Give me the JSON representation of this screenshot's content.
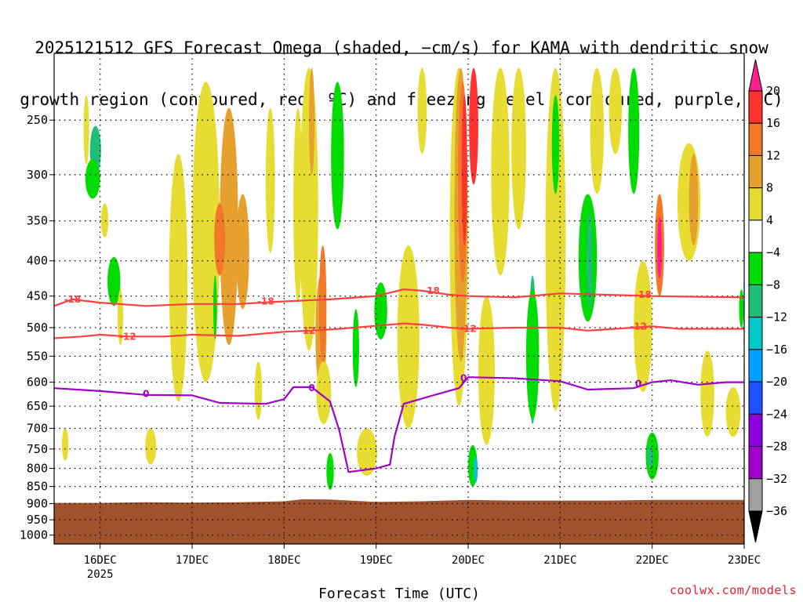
{
  "title": {
    "line1": "2025121512 GFS Forecast Omega (shaded, −cm/s) for KAMA with dendritic snow",
    "line2": "growth region (contoured, red, ºC) and freezing level (contoured, purple, ºC)"
  },
  "watermark": "coolwx.com/models",
  "chart_data": {
    "type": "heatmap",
    "title": "2025121512 GFS Forecast Omega (shaded, −cm/s) for KAMA with dendritic snow growth region (contoured, red, ºC) and freezing level (contoured, purple, ºC)",
    "xlabel": "Forecast Time (UTC)",
    "ylabel": "",
    "x_ticks": [
      "16DEC",
      "17DEC",
      "18DEC",
      "19DEC",
      "20DEC",
      "21DEC",
      "22DEC",
      "23DEC"
    ],
    "x_year_label": "2025",
    "x_range_days": [
      15.5,
      23.0
    ],
    "y_ticks": [
      "250",
      "300",
      "350",
      "400",
      "450",
      "500",
      "550",
      "600",
      "650",
      "700",
      "750",
      "800",
      "850",
      "900",
      "950",
      "1000"
    ],
    "y_range_hpa": [
      200,
      1030
    ],
    "grid": true,
    "colorbar": {
      "levels": [
        20,
        16,
        12,
        8,
        4,
        -4,
        -8,
        -12,
        -16,
        -20,
        -24,
        -28,
        -32,
        -36
      ],
      "colors": [
        "#ff1e6e",
        "#ff3232",
        "#f07828",
        "#e6a02d",
        "#e6dc32",
        "#ffffff",
        "#00dc00",
        "#1ebe78",
        "#00c8c8",
        "#00a0ff",
        "#1e50ff",
        "#8c00dc",
        "#a000c8",
        "#a0a0a0",
        "#000000"
      ],
      "upper_triangle_color": "#ff1e8c",
      "lower_triangle_color": "#000000"
    },
    "terrain_color": "#a0522d",
    "contours": [
      {
        "name": "dendritic-upper",
        "label": "-18",
        "color": "#ff4040",
        "points": [
          [
            15.5,
            465
          ],
          [
            15.7,
            455
          ],
          [
            16.0,
            460
          ],
          [
            16.5,
            465
          ],
          [
            17.0,
            462
          ],
          [
            17.5,
            462
          ],
          [
            18.0,
            458
          ],
          [
            18.5,
            455
          ],
          [
            18.8,
            452
          ],
          [
            19.0,
            450
          ],
          [
            19.3,
            440
          ],
          [
            19.5,
            442
          ],
          [
            19.8,
            448
          ],
          [
            20.0,
            450
          ],
          [
            20.5,
            452
          ],
          [
            21.0,
            446
          ],
          [
            21.5,
            448
          ],
          [
            22.0,
            450
          ],
          [
            22.5,
            451
          ],
          [
            23.0,
            452
          ]
        ],
        "label_positions": [
          [
            15.7,
            455
          ],
          [
            17.8,
            458
          ],
          [
            19.6,
            442
          ],
          [
            21.9,
            448
          ]
        ]
      },
      {
        "name": "dendritic-lower",
        "label": "-12",
        "color": "#ff4040",
        "points": [
          [
            15.5,
            518
          ],
          [
            15.8,
            515
          ],
          [
            16.0,
            512
          ],
          [
            16.3,
            515
          ],
          [
            16.7,
            515
          ],
          [
            17.0,
            512
          ],
          [
            17.5,
            514
          ],
          [
            18.0,
            507
          ],
          [
            18.3,
            505
          ],
          [
            18.6,
            502
          ],
          [
            19.0,
            497
          ],
          [
            19.3,
            493
          ],
          [
            19.5,
            495
          ],
          [
            19.8,
            500
          ],
          [
            20.0,
            502
          ],
          [
            20.5,
            500
          ],
          [
            21.0,
            500
          ],
          [
            21.3,
            505
          ],
          [
            21.6,
            502
          ],
          [
            22.0,
            498
          ],
          [
            22.3,
            502
          ],
          [
            22.5,
            502
          ],
          [
            23.0,
            502
          ]
        ],
        "label_positions": [
          [
            16.3,
            515
          ],
          [
            18.25,
            505
          ],
          [
            20.0,
            502
          ],
          [
            21.85,
            498
          ]
        ]
      },
      {
        "name": "freezing-level",
        "label": "0",
        "color": "#a000c8",
        "points": [
          [
            15.5,
            612
          ],
          [
            16.0,
            618
          ],
          [
            16.5,
            626
          ],
          [
            17.0,
            627
          ],
          [
            17.3,
            643
          ],
          [
            17.8,
            645
          ],
          [
            18.0,
            635
          ],
          [
            18.1,
            610
          ],
          [
            18.3,
            610
          ],
          [
            18.5,
            640
          ],
          [
            18.6,
            705
          ],
          [
            18.7,
            810
          ],
          [
            19.0,
            800
          ],
          [
            19.15,
            790
          ],
          [
            19.2,
            720
          ],
          [
            19.3,
            645
          ],
          [
            19.6,
            628
          ],
          [
            19.9,
            612
          ],
          [
            20.0,
            590
          ],
          [
            20.5,
            592
          ],
          [
            21.0,
            598
          ],
          [
            21.3,
            615
          ],
          [
            21.8,
            612
          ],
          [
            22.0,
            600
          ],
          [
            22.2,
            596
          ],
          [
            22.5,
            605
          ],
          [
            22.8,
            600
          ],
          [
            23.0,
            600
          ]
        ],
        "label_positions": [
          [
            16.5,
            624
          ],
          [
            18.3,
            612
          ],
          [
            19.95,
            592
          ],
          [
            21.85,
            603
          ]
        ]
      }
    ],
    "terrain_surface_hpa": [
      [
        15.5,
        898
      ],
      [
        16.0,
        898
      ],
      [
        16.5,
        896
      ],
      [
        17.0,
        897
      ],
      [
        17.5,
        896
      ],
      [
        18.0,
        893
      ],
      [
        18.2,
        887
      ],
      [
        18.5,
        888
      ],
      [
        18.8,
        892
      ],
      [
        19.0,
        895
      ],
      [
        19.5,
        893
      ],
      [
        20.0,
        889
      ],
      [
        20.5,
        891
      ],
      [
        21.0,
        891
      ],
      [
        21.5,
        891
      ],
      [
        22.0,
        889
      ],
      [
        22.5,
        889
      ],
      [
        23.0,
        889
      ]
    ],
    "omega_cells": [
      {
        "x": 15.95,
        "w": 0.12,
        "p0": 255,
        "p1": 300,
        "v": -12
      },
      {
        "x": 15.92,
        "w": 0.16,
        "p0": 285,
        "p1": 325,
        "v": -8
      },
      {
        "x": 16.15,
        "w": 0.14,
        "p0": 395,
        "p1": 465,
        "v": -8
      },
      {
        "x": 16.05,
        "w": 0.08,
        "p0": 330,
        "p1": 370,
        "v": 6
      },
      {
        "x": 16.22,
        "w": 0.06,
        "p0": 440,
        "p1": 530,
        "v": 6
      },
      {
        "x": 15.62,
        "w": 0.07,
        "p0": 700,
        "p1": 780,
        "v": 6
      },
      {
        "x": 16.85,
        "w": 0.2,
        "p0": 280,
        "p1": 640,
        "v": 6
      },
      {
        "x": 17.15,
        "w": 0.3,
        "p0": 220,
        "p1": 600,
        "v": 6
      },
      {
        "x": 17.4,
        "w": 0.2,
        "p0": 240,
        "p1": 530,
        "v": 10
      },
      {
        "x": 17.3,
        "w": 0.12,
        "p0": 330,
        "p1": 420,
        "v": 14
      },
      {
        "x": 17.55,
        "w": 0.14,
        "p0": 320,
        "p1": 470,
        "v": 10
      },
      {
        "x": 17.25,
        "w": 0.04,
        "p0": 420,
        "p1": 520,
        "v": -8
      },
      {
        "x": 16.55,
        "w": 0.12,
        "p0": 700,
        "p1": 790,
        "v": 6
      },
      {
        "x": 17.85,
        "w": 0.1,
        "p0": 240,
        "p1": 390,
        "v": 6
      },
      {
        "x": 18.15,
        "w": 0.1,
        "p0": 240,
        "p1": 460,
        "v": 6
      },
      {
        "x": 18.27,
        "w": 0.2,
        "p0": 210,
        "p1": 540,
        "v": 6
      },
      {
        "x": 18.4,
        "w": 0.12,
        "p0": 420,
        "p1": 620,
        "v": 10
      },
      {
        "x": 18.42,
        "w": 0.08,
        "p0": 380,
        "p1": 560,
        "v": 14
      },
      {
        "x": 18.43,
        "w": 0.16,
        "p0": 560,
        "p1": 690,
        "v": 6
      },
      {
        "x": 18.3,
        "w": 0.06,
        "p0": 210,
        "p1": 300,
        "v": 10
      },
      {
        "x": 18.6,
        "w": 0.1,
        "p0": 230,
        "p1": 330,
        "v": -12
      },
      {
        "x": 18.61,
        "w": 0.05,
        "p0": 240,
        "p1": 300,
        "v": -24
      },
      {
        "x": 18.58,
        "w": 0.14,
        "p0": 220,
        "p1": 360,
        "v": -8
      },
      {
        "x": 18.78,
        "w": 0.07,
        "p0": 470,
        "p1": 610,
        "v": -8
      },
      {
        "x": 18.9,
        "w": 0.22,
        "p0": 700,
        "p1": 820,
        "v": 6
      },
      {
        "x": 18.5,
        "w": 0.08,
        "p0": 760,
        "p1": 860,
        "v": -8
      },
      {
        "x": 19.05,
        "w": 0.14,
        "p0": 430,
        "p1": 520,
        "v": -8
      },
      {
        "x": 19.35,
        "w": 0.24,
        "p0": 380,
        "p1": 700,
        "v": 6
      },
      {
        "x": 19.5,
        "w": 0.1,
        "p0": 210,
        "p1": 280,
        "v": 6
      },
      {
        "x": 19.9,
        "w": 0.2,
        "p0": 210,
        "p1": 650,
        "v": 6
      },
      {
        "x": 19.92,
        "w": 0.14,
        "p0": 210,
        "p1": 560,
        "v": 10
      },
      {
        "x": 19.94,
        "w": 0.1,
        "p0": 220,
        "p1": 430,
        "v": 14
      },
      {
        "x": 19.96,
        "w": 0.06,
        "p0": 230,
        "p1": 380,
        "v": 18
      },
      {
        "x": 20.06,
        "w": 0.1,
        "p0": 210,
        "p1": 310,
        "v": 18
      },
      {
        "x": 20.2,
        "w": 0.18,
        "p0": 450,
        "p1": 740,
        "v": 6
      },
      {
        "x": 20.05,
        "w": 0.1,
        "p0": 740,
        "p1": 850,
        "v": -8
      },
      {
        "x": 20.08,
        "w": 0.05,
        "p0": 770,
        "p1": 840,
        "v": -16
      },
      {
        "x": 20.35,
        "w": 0.2,
        "p0": 210,
        "p1": 420,
        "v": 6
      },
      {
        "x": 20.55,
        "w": 0.16,
        "p0": 210,
        "p1": 360,
        "v": 6
      },
      {
        "x": 20.7,
        "w": 0.08,
        "p0": 420,
        "p1": 690,
        "v": -12
      },
      {
        "x": 20.7,
        "w": 0.14,
        "p0": 440,
        "p1": 680,
        "v": -8
      },
      {
        "x": 20.95,
        "w": 0.22,
        "p0": 210,
        "p1": 660,
        "v": 6
      },
      {
        "x": 20.95,
        "w": 0.08,
        "p0": 230,
        "p1": 320,
        "v": -8
      },
      {
        "x": 21.3,
        "w": 0.2,
        "p0": 320,
        "p1": 490,
        "v": -8
      },
      {
        "x": 21.32,
        "w": 0.06,
        "p0": 340,
        "p1": 470,
        "v": -12
      },
      {
        "x": 21.4,
        "w": 0.15,
        "p0": 210,
        "p1": 320,
        "v": 6
      },
      {
        "x": 21.6,
        "w": 0.14,
        "p0": 210,
        "p1": 280,
        "v": 6
      },
      {
        "x": 21.8,
        "w": 0.12,
        "p0": 210,
        "p1": 320,
        "v": -8
      },
      {
        "x": 21.9,
        "w": 0.2,
        "p0": 400,
        "p1": 620,
        "v": 6
      },
      {
        "x": 22.08,
        "w": 0.1,
        "p0": 320,
        "p1": 450,
        "v": 14
      },
      {
        "x": 22.08,
        "w": 0.05,
        "p0": 345,
        "p1": 425,
        "v": 22
      },
      {
        "x": 22.0,
        "w": 0.14,
        "p0": 710,
        "p1": 830,
        "v": -8
      },
      {
        "x": 21.98,
        "w": 0.06,
        "p0": 740,
        "p1": 800,
        "v": -12
      },
      {
        "x": 22.4,
        "w": 0.25,
        "p0": 270,
        "p1": 400,
        "v": 6
      },
      {
        "x": 22.45,
        "w": 0.1,
        "p0": 280,
        "p1": 380,
        "v": 10
      },
      {
        "x": 22.6,
        "w": 0.15,
        "p0": 540,
        "p1": 720,
        "v": 6
      },
      {
        "x": 22.88,
        "w": 0.16,
        "p0": 610,
        "p1": 720,
        "v": 6
      },
      {
        "x": 22.97,
        "w": 0.05,
        "p0": 440,
        "p1": 500,
        "v": -8
      },
      {
        "x": 17.72,
        "w": 0.08,
        "p0": 560,
        "p1": 680,
        "v": 6
      },
      {
        "x": 15.85,
        "w": 0.06,
        "p0": 230,
        "p1": 290,
        "v": 6
      }
    ]
  }
}
